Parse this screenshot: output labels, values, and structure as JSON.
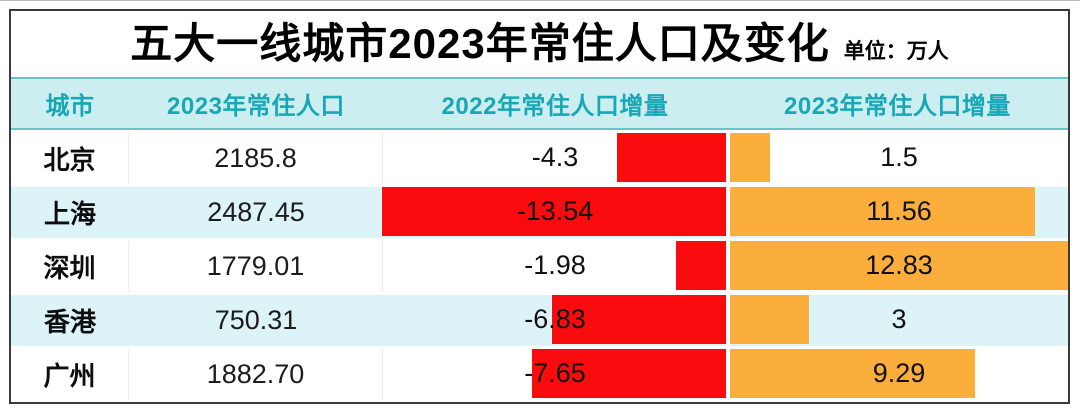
{
  "title": {
    "text": "五大一线城市2023年常住人口及变化",
    "unit": "单位：万人"
  },
  "table": {
    "headers": [
      "城市",
      "2023年常住人口",
      "2022年常住人口增量",
      "2023年常住人口增量"
    ],
    "rows": [
      {
        "city": "北京",
        "population": "2185.8",
        "delta2022": "-4.3",
        "delta2023": "1.5"
      },
      {
        "city": "上海",
        "population": "2487.45",
        "delta2022": "-13.54",
        "delta2023": "11.56"
      },
      {
        "city": "深圳",
        "population": "1779.01",
        "delta2022": "-1.98",
        "delta2023": "12.83"
      },
      {
        "city": "香港",
        "population": "750.31",
        "delta2022": "-6.83",
        "delta2023": "3"
      },
      {
        "city": "广州",
        "population": "1882.70",
        "delta2022": "-7.65",
        "delta2023": "9.29"
      }
    ]
  },
  "colors": {
    "negative_bar": "#f90b0e",
    "positive_bar": "#fbae3c",
    "header_bg": "#cceef1",
    "header_text": "#18a7b5",
    "alt_row_bg": "#dcf3f8",
    "header_rule": "#68c3cb",
    "frame_border": "#3b3b3b"
  },
  "chart_data": {
    "type": "bar",
    "title": "五大一线城市2023年常住人口及变化",
    "unit_label": "单位：万人",
    "layout": "table-with-inline-horizontal-bars",
    "categories": [
      "北京",
      "上海",
      "深圳",
      "香港",
      "广州"
    ],
    "series": [
      {
        "name": "2023年常住人口",
        "values": [
          2185.8,
          2487.45,
          1779.01,
          750.31,
          1882.7
        ],
        "display": "text-only"
      },
      {
        "name": "2022年常住人口增量",
        "values": [
          -4.3,
          -13.54,
          -1.98,
          -6.83,
          -7.65
        ],
        "color": "#f90b0e",
        "bar_direction": "left-from-divider"
      },
      {
        "name": "2023年常住人口增量",
        "values": [
          1.5,
          11.56,
          12.83,
          3,
          9.29
        ],
        "color": "#fbae3c",
        "bar_direction": "right-from-divider"
      }
    ],
    "legend": "none",
    "grid": "off"
  }
}
